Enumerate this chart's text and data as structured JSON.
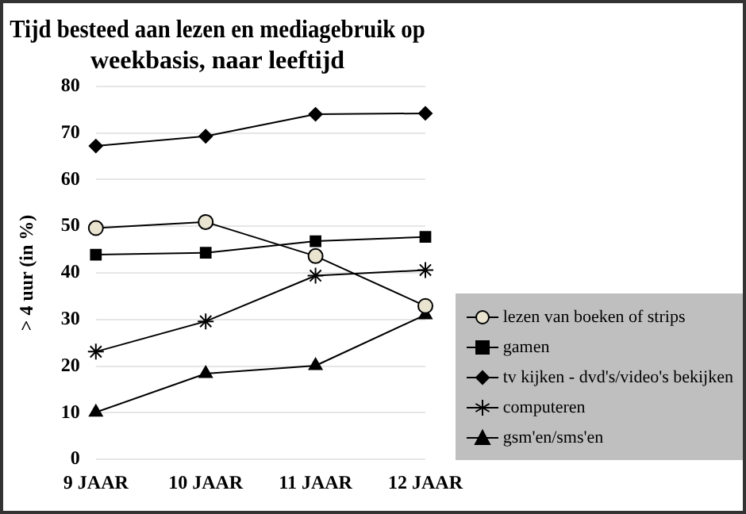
{
  "chart_data": {
    "type": "line",
    "title": [
      "Tijd besteed aan lezen en mediagebruik op",
      "weekbasis, naar leeftijd"
    ],
    "ylabel": "> 4 uur (in %)",
    "categories": [
      "9 JAAR",
      "10 JAAR",
      "11 JAAR",
      "12 JAAR"
    ],
    "ylim": [
      0,
      80
    ],
    "yticks": [
      0,
      10,
      20,
      30,
      40,
      50,
      60,
      70,
      80
    ],
    "grid": "y",
    "legend": "bottom right",
    "line_style": "solid",
    "series": [
      {
        "name": "lezen van boeken of strips",
        "color": "#000000",
        "marker": "circle",
        "values": [
          49.6,
          50.9,
          43.6,
          32.9
        ]
      },
      {
        "name": "gamen",
        "color": "#000000",
        "marker": "square",
        "values": [
          43.9,
          44.3,
          46.8,
          47.7
        ]
      },
      {
        "name": "tv kijken - dvd's/video's bekijken",
        "color": "#000000",
        "marker": "diamond",
        "values": [
          67.2,
          69.3,
          74.0,
          74.2
        ]
      },
      {
        "name": "computeren",
        "color": "#000000",
        "marker": "cross",
        "values": [
          23.1,
          29.6,
          39.4,
          40.6
        ]
      },
      {
        "name": "gsm'en/sms'en",
        "color": "#000000",
        "marker": "triangle",
        "values": [
          10.1,
          18.4,
          20.1,
          31.0
        ]
      }
    ]
  }
}
